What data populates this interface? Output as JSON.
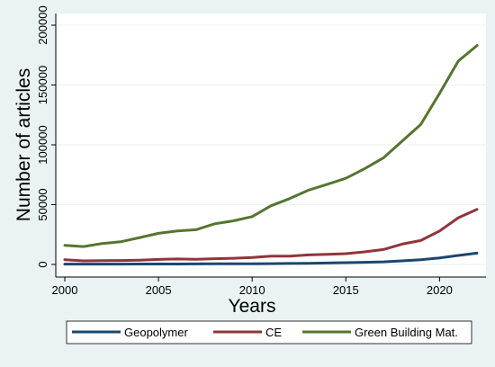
{
  "chart_data": {
    "type": "line",
    "title": "",
    "xlabel": "Years",
    "ylabel": "Number of articles",
    "xlim": [
      2000,
      2022
    ],
    "ylim": [
      0,
      200000
    ],
    "x_ticks": [
      2000,
      2005,
      2010,
      2015,
      2020
    ],
    "y_ticks": [
      0,
      50000,
      100000,
      150000,
      200000
    ],
    "grid": "horizontal",
    "legend_position": "bottom",
    "x": [
      2000,
      2001,
      2002,
      2003,
      2004,
      2005,
      2006,
      2007,
      2008,
      2009,
      2010,
      2011,
      2012,
      2013,
      2014,
      2015,
      2016,
      2017,
      2018,
      2019,
      2020,
      2021,
      2022
    ],
    "series": [
      {
        "name": "Geopolymer",
        "color": "#1a476f",
        "values": [
          300,
          300,
          300,
          300,
          350,
          400,
          400,
          450,
          500,
          550,
          600,
          700,
          800,
          1000,
          1200,
          1500,
          1800,
          2200,
          3000,
          4000,
          5500,
          7500,
          9500
        ]
      },
      {
        "name": "CE",
        "color": "#90353b",
        "values": [
          4000,
          3000,
          3200,
          3300,
          3600,
          4200,
          4600,
          4300,
          4800,
          5200,
          5800,
          7000,
          7000,
          8000,
          8500,
          9000,
          10500,
          12500,
          17000,
          20000,
          28000,
          39000,
          46000
        ]
      },
      {
        "name": "Green Building Mat.",
        "color": "#55752f",
        "values": [
          16000,
          15000,
          17500,
          19000,
          22500,
          26000,
          28000,
          29000,
          34000,
          36500,
          40000,
          49000,
          55000,
          62000,
          67000,
          72000,
          80000,
          89000,
          103000,
          117000,
          143000,
          170000,
          183000
        ]
      }
    ]
  }
}
